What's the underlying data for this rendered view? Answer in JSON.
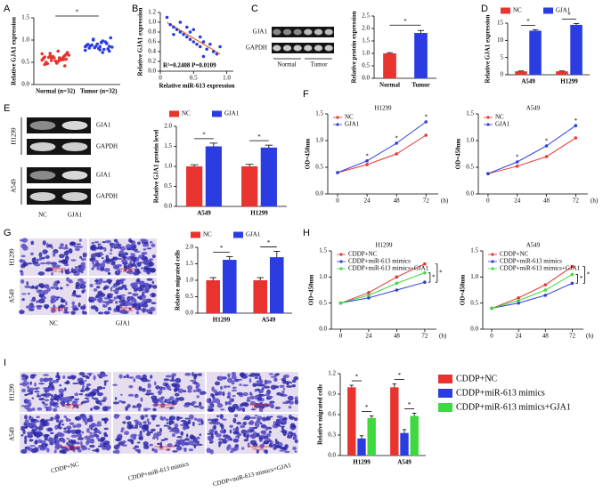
{
  "chart_data": [
    {
      "type": "strip",
      "panel": "A",
      "ylabel": "Relative GJA1 expression",
      "categories": [
        "Normal (n=32)",
        "Tumor (n=32)"
      ],
      "values": [
        [
          0.55,
          0.62,
          0.48,
          0.7,
          0.58,
          0.65,
          0.52,
          0.6,
          0.45,
          0.68,
          0.57,
          0.63,
          0.5,
          0.72,
          0.55,
          0.6,
          0.47,
          0.66,
          0.58,
          0.53,
          0.61,
          0.69,
          0.56,
          0.5,
          0.64,
          0.59,
          0.42,
          0.75,
          0.54,
          0.62,
          0.57,
          0.6
        ],
        [
          0.85,
          0.92,
          0.78,
          1.0,
          0.88,
          0.8,
          0.95,
          0.83,
          0.9,
          0.75,
          0.98,
          0.86,
          0.82,
          1.05,
          0.79,
          0.91,
          0.87,
          0.84,
          0.96,
          0.81,
          0.89,
          0.77,
          0.93,
          0.85,
          1.02,
          0.88,
          0.8,
          0.94,
          0.83,
          0.9,
          0.86,
          0.72
        ]
      ],
      "colors": [
        "#e8332f",
        "#2b3de0"
      ],
      "ylim": [
        0,
        1.5
      ],
      "yticks": [
        {
          "value": 0,
          "label": "0.0"
        },
        {
          "value": 0.5,
          "label": "0.5"
        },
        {
          "value": 1,
          "label": "1.0"
        },
        {
          "value": 1.5,
          "label": "1.5"
        }
      ],
      "significance": [
        "*"
      ]
    },
    {
      "type": "scatter",
      "panel": "B",
      "xlabel": "Relative miR-613 expression",
      "ylabel": "Relative GJA1 expression",
      "annotation": "R²=0.2408  P=0.0109",
      "x": [
        0.1,
        0.15,
        0.2,
        0.25,
        0.3,
        0.3,
        0.35,
        0.4,
        0.4,
        0.45,
        0.5,
        0.5,
        0.55,
        0.6,
        0.6,
        0.65,
        0.7,
        0.75,
        0.8,
        0.85,
        0.9,
        0.2,
        0.45,
        0.65
      ],
      "values": [
        1.1,
        0.95,
        0.9,
        0.85,
        0.8,
        1.0,
        0.75,
        0.7,
        0.9,
        0.65,
        0.6,
        0.85,
        0.55,
        0.7,
        0.5,
        0.6,
        0.45,
        0.55,
        0.4,
        0.35,
        0.5,
        0.75,
        0.8,
        0.3
      ],
      "color": "#2b3de0",
      "fit_color": "#e86a1a",
      "xlim": [
        0,
        1.1
      ],
      "xticks": [
        0,
        {
          "value": 0.5,
          "label": "0.5"
        },
        {
          "value": 1,
          "label": "1.0"
        }
      ],
      "ylim": [
        0,
        1.2
      ],
      "yticks": [
        {
          "value": 0,
          "label": "0.0"
        },
        {
          "value": 0.2,
          "label": "0.2"
        },
        {
          "value": 0.4,
          "label": "0.4"
        },
        {
          "value": 0.6,
          "label": "0.6"
        },
        {
          "value": 0.8,
          "label": "0.8"
        },
        {
          "value": 1,
          "label": "1.0"
        },
        {
          "value": 1.2,
          "label": "1.2"
        }
      ]
    },
    {
      "type": "bar",
      "panel": "C",
      "ylabel": "Relative protein expression",
      "categories": [
        "Normal",
        "Tumor"
      ],
      "values": [
        1.0,
        1.82
      ],
      "errors": [
        0.03,
        0.1
      ],
      "colors": [
        "#e8332f",
        "#2b3de0"
      ],
      "ylim": [
        0,
        2.5
      ],
      "yticks": [
        {
          "value": 0,
          "label": "0.0"
        },
        {
          "value": 0.5,
          "label": "0.5"
        },
        {
          "value": 1,
          "label": "1.0"
        },
        {
          "value": 1.5,
          "label": "1.5"
        },
        {
          "value": 2,
          "label": "2.0"
        },
        {
          "value": 2.5,
          "label": "2.5"
        }
      ],
      "significance": [
        "*"
      ]
    },
    {
      "type": "bar",
      "panel": "D",
      "ylabel": "Relative GJA1 expression",
      "categories": [
        "A549",
        "H1299"
      ],
      "series": [
        {
          "name": "NC",
          "color": "#e8332f",
          "values": [
            1.0,
            1.0
          ],
          "errors": [
            0.1,
            0.1
          ]
        },
        {
          "name": "GJA1",
          "color": "#2b3de0",
          "values": [
            12.8,
            14.5
          ],
          "errors": [
            0.3,
            0.4
          ]
        }
      ],
      "ylim": [
        0,
        15
      ],
      "yticks": [
        0,
        5,
        10,
        15
      ],
      "legend": "top",
      "significance": [
        "*",
        "*"
      ]
    },
    {
      "type": "bar",
      "panel": "E",
      "ylabel": "Relative GJA1 protein level",
      "categories": [
        "A549",
        "H1299"
      ],
      "series": [
        {
          "name": "NC",
          "color": "#e8332f",
          "values": [
            1.0,
            1.0
          ],
          "errors": [
            0.04,
            0.05
          ]
        },
        {
          "name": "GJA1",
          "color": "#2b3de0",
          "values": [
            1.5,
            1.47
          ],
          "errors": [
            0.08,
            0.06
          ]
        }
      ],
      "ylim": [
        0,
        2
      ],
      "yticks": [
        {
          "value": 0,
          "label": "0.0"
        },
        {
          "value": 0.5,
          "label": "0.5"
        },
        {
          "value": 1,
          "label": "1.0"
        },
        {
          "value": 1.5,
          "label": "1.5"
        },
        {
          "value": 2,
          "label": "2.0"
        }
      ],
      "legend": "top",
      "significance": [
        "*",
        "*"
      ]
    },
    {
      "type": "line",
      "panel": "F",
      "title": "H1299",
      "ylabel": "OD=450nm",
      "x": [
        0,
        24,
        48,
        72
      ],
      "xlim": [
        -8,
        82
      ],
      "xticks": [
        0,
        24,
        48,
        72
      ],
      "xunit": "(h)",
      "ylim": [
        0,
        1.5
      ],
      "yticks": [
        {
          "value": 0,
          "label": "0.0"
        },
        {
          "value": 0.5,
          "label": "0.5"
        },
        {
          "value": 1,
          "label": "1.0"
        },
        {
          "value": 1.5,
          "label": "1.5"
        }
      ],
      "series": [
        {
          "name": "NC",
          "color": "#e8332f",
          "values": [
            0.4,
            0.55,
            0.75,
            1.1
          ]
        },
        {
          "name": "GJA1",
          "color": "#2b3de0",
          "values": [
            0.4,
            0.62,
            0.95,
            1.35
          ]
        }
      ],
      "legend": "upper left",
      "significance": [
        "*",
        "*",
        "*"
      ]
    },
    {
      "type": "line",
      "title": "A549",
      "ylabel": "OD=450nm",
      "x": [
        0,
        24,
        48,
        72
      ],
      "xlim": [
        -8,
        82
      ],
      "xticks": [
        0,
        24,
        48,
        72
      ],
      "xunit": "(h)",
      "ylim": [
        0,
        1.5
      ],
      "yticks": [
        {
          "value": 0,
          "label": "0.0"
        },
        {
          "value": 0.5,
          "label": "0.5"
        },
        {
          "value": 1,
          "label": "1.0"
        },
        {
          "value": 1.5,
          "label": "1.5"
        }
      ],
      "series": [
        {
          "name": "NC",
          "color": "#e8332f",
          "values": [
            0.38,
            0.52,
            0.7,
            1.05
          ]
        },
        {
          "name": "GJA1",
          "color": "#2b3de0",
          "values": [
            0.38,
            0.6,
            0.9,
            1.28
          ]
        }
      ],
      "legend": "upper left",
      "significance": [
        "*",
        "*",
        "*"
      ]
    },
    {
      "type": "bar",
      "panel": "G",
      "ylabel": "Relative migrated cells",
      "categories": [
        "H1299",
        "A549"
      ],
      "series": [
        {
          "name": "NC",
          "color": "#e8332f",
          "values": [
            1.0,
            1.0
          ],
          "errors": [
            0.08,
            0.08
          ]
        },
        {
          "name": "GJA1",
          "color": "#2b3de0",
          "values": [
            1.62,
            1.7
          ],
          "errors": [
            0.1,
            0.18
          ]
        }
      ],
      "ylim": [
        0,
        2
      ],
      "yticks": [
        {
          "value": 0,
          "label": "0.0"
        },
        {
          "value": 0.5,
          "label": "0.5"
        },
        {
          "value": 1,
          "label": "1.0"
        },
        {
          "value": 1.5,
          "label": "1.5"
        },
        {
          "value": 2,
          "label": "2.0"
        }
      ],
      "legend": "top",
      "significance": [
        "*",
        "*"
      ]
    },
    {
      "type": "line",
      "panel": "H",
      "title": "H1299",
      "ylabel": "OD=450nm",
      "x": [
        0,
        24,
        48,
        72
      ],
      "xlim": [
        -8,
        82
      ],
      "xticks": [
        0,
        24,
        48,
        72
      ],
      "xunit": "(h)",
      "ylim": [
        0,
        1.5
      ],
      "yticks": [
        {
          "value": 0,
          "label": "0.0"
        },
        {
          "value": 0.5,
          "label": "0.5"
        },
        {
          "value": 1,
          "label": "1.0"
        },
        {
          "value": 1.5,
          "label": "1.5"
        }
      ],
      "series": [
        {
          "name": "CDDP+NC",
          "color": "#e8332f",
          "values": [
            0.5,
            0.7,
            1.0,
            1.25
          ]
        },
        {
          "name": "CDDP+miR-613 mimics",
          "color": "#2b3de0",
          "values": [
            0.5,
            0.6,
            0.75,
            0.9
          ]
        },
        {
          "name": "CDDP+miR-613 mimics+GJA1",
          "color": "#3ed93e",
          "values": [
            0.5,
            0.65,
            0.88,
            1.08
          ]
        }
      ],
      "legend": "upper left",
      "significance": [
        "*",
        "*"
      ]
    },
    {
      "type": "line",
      "title": "A549",
      "ylabel": "OD=450nm",
      "x": [
        0,
        24,
        48,
        72
      ],
      "xlim": [
        -8,
        82
      ],
      "xticks": [
        0,
        24,
        48,
        72
      ],
      "xunit": "(h)",
      "ylim": [
        0,
        1.5
      ],
      "yticks": [
        {
          "value": 0,
          "label": "0.0"
        },
        {
          "value": 0.5,
          "label": "0.5"
        },
        {
          "value": 1,
          "label": "1.0"
        },
        {
          "value": 1.5,
          "label": "1.5"
        }
      ],
      "series": [
        {
          "name": "CDDP+NC",
          "color": "#e8332f",
          "values": [
            0.4,
            0.6,
            0.85,
            1.2
          ]
        },
        {
          "name": "CDDP+miR-613 mimics",
          "color": "#2b3de0",
          "values": [
            0.4,
            0.5,
            0.65,
            0.88
          ]
        },
        {
          "name": "CDDP+miR-613 mimics+GJA1",
          "color": "#3ed93e",
          "values": [
            0.4,
            0.55,
            0.75,
            1.05
          ]
        }
      ],
      "legend": "upper left",
      "significance": [
        "*",
        "*"
      ]
    },
    {
      "type": "bar",
      "panel": "I",
      "ylabel": "Relative migrated cells",
      "categories": [
        "H1299",
        "A549"
      ],
      "series": [
        {
          "name": "CDDP+NC",
          "color": "#e8332f",
          "values": [
            1.0,
            1.0
          ],
          "errors": [
            0.03,
            0.05
          ]
        },
        {
          "name": "CDDP+miR-613 mimics",
          "color": "#2b3de0",
          "values": [
            0.25,
            0.33
          ],
          "errors": [
            0.04,
            0.05
          ]
        },
        {
          "name": "CDDP+miR-613 mimics+GJA1",
          "color": "#3ed93e",
          "values": [
            0.55,
            0.58
          ],
          "errors": [
            0.03,
            0.04
          ]
        }
      ],
      "ylim": [
        0,
        1.2
      ],
      "yticks": [
        {
          "value": 0,
          "label": "0.0"
        },
        {
          "value": 0.3,
          "label": "0.3"
        },
        {
          "value": 0.6,
          "label": "0.6"
        },
        {
          "value": 0.9,
          "label": "0.9"
        },
        {
          "value": 1.2,
          "label": "1.2"
        }
      ],
      "legend": "right",
      "significance": [
        [
          "*",
          "*"
        ],
        [
          "*",
          "*"
        ]
      ]
    }
  ],
  "images": {
    "C": {
      "bands": [
        "GJA1",
        "GAPDH"
      ],
      "groups": [
        "Normal",
        "Tumor"
      ]
    },
    "E": {
      "cells": [
        "H1299",
        "A549"
      ],
      "bands": [
        "GJA1",
        "GAPDH"
      ],
      "groups": [
        "NC",
        "GJA1"
      ]
    },
    "G": {
      "cells": [
        "H1299",
        "A549"
      ],
      "groups": [
        "NC",
        "GJA1"
      ],
      "scale": "100 μm"
    },
    "I": {
      "cells": [
        "H1299",
        "A549"
      ],
      "groups": [
        "CDDP+NC",
        "CDDP+miR-613 mimics",
        "CDDP+miR-613 mimics+GJA1"
      ],
      "scale": "100 μm"
    }
  }
}
